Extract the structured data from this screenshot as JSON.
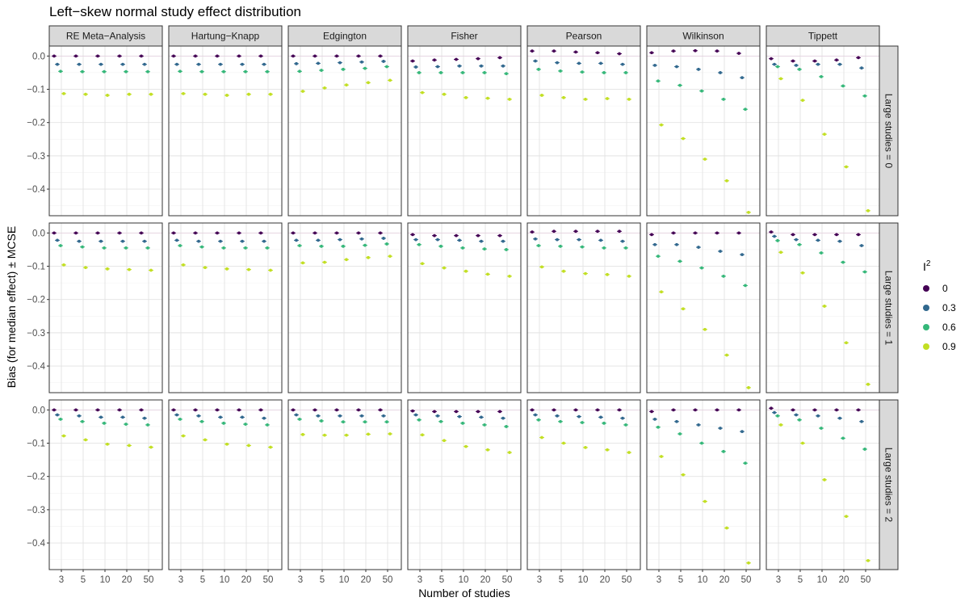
{
  "chart_data": {
    "type": "scatter",
    "title": "Left−skew normal study effect distribution",
    "xlabel": "Number of studies",
    "ylabel": "Bias (for median effect) ± MCSE",
    "x_categories": [
      "3",
      "5",
      "10",
      "20",
      "50"
    ],
    "y_ticks": [
      0.0,
      -0.1,
      -0.2,
      -0.3,
      -0.4
    ],
    "y_tick_labels": [
      "0.0",
      "−0.1",
      "−0.2",
      "−0.3",
      "−0.4"
    ],
    "ylim": [
      -0.48,
      0.03
    ],
    "grid": true,
    "legend": {
      "title": "I",
      "title_superscript": "2",
      "placement": "right",
      "entries": [
        {
          "label": "0",
          "color": "#440154"
        },
        {
          "label": "0.3",
          "color": "#31688E"
        },
        {
          "label": "0.6",
          "color": "#35B779"
        },
        {
          "label": "0.9",
          "color": "#C2DF23"
        }
      ]
    },
    "methods": [
      "RE Meta−Analysis",
      "Hartung−Knapp",
      "Edgington",
      "Fisher",
      "Pearson",
      "Wilkinson",
      "Tippett"
    ],
    "rows": [
      "Large studies = 0",
      "Large studies = 1",
      "Large studies = 2"
    ],
    "series_order": [
      "0",
      "0.3",
      "0.6",
      "0.9"
    ],
    "values": [
      [
        [
          [
            0.0,
            -0.025,
            -0.046,
            -0.113
          ],
          [
            0.0,
            -0.025,
            -0.047,
            -0.115
          ],
          [
            0.0,
            -0.025,
            -0.047,
            -0.118
          ],
          [
            0.0,
            -0.025,
            -0.047,
            -0.115
          ],
          [
            0.0,
            -0.025,
            -0.047,
            -0.115
          ]
        ],
        [
          [
            0.0,
            -0.025,
            -0.046,
            -0.113
          ],
          [
            0.0,
            -0.025,
            -0.047,
            -0.115
          ],
          [
            0.0,
            -0.025,
            -0.047,
            -0.118
          ],
          [
            0.0,
            -0.025,
            -0.047,
            -0.115
          ],
          [
            0.0,
            -0.025,
            -0.047,
            -0.115
          ]
        ],
        [
          [
            0.0,
            -0.023,
            -0.046,
            -0.106
          ],
          [
            0.0,
            -0.022,
            -0.043,
            -0.096
          ],
          [
            0.0,
            -0.02,
            -0.04,
            -0.087
          ],
          [
            0.0,
            -0.018,
            -0.037,
            -0.08
          ],
          [
            0.0,
            -0.016,
            -0.032,
            -0.073
          ]
        ],
        [
          [
            -0.015,
            -0.033,
            -0.05,
            -0.11
          ],
          [
            -0.012,
            -0.032,
            -0.05,
            -0.115
          ],
          [
            -0.01,
            -0.03,
            -0.05,
            -0.125
          ],
          [
            -0.008,
            -0.03,
            -0.05,
            -0.127
          ],
          [
            -0.005,
            -0.03,
            -0.053,
            -0.13
          ]
        ],
        [
          [
            0.015,
            -0.015,
            -0.04,
            -0.118
          ],
          [
            0.015,
            -0.02,
            -0.045,
            -0.125
          ],
          [
            0.012,
            -0.022,
            -0.048,
            -0.13
          ],
          [
            0.01,
            -0.022,
            -0.05,
            -0.128
          ],
          [
            0.007,
            -0.025,
            -0.05,
            -0.13
          ]
        ],
        [
          [
            0.01,
            -0.028,
            -0.075,
            -0.207
          ],
          [
            0.015,
            -0.032,
            -0.088,
            -0.248
          ],
          [
            0.016,
            -0.04,
            -0.105,
            -0.31
          ],
          [
            0.015,
            -0.05,
            -0.13,
            -0.375
          ],
          [
            0.008,
            -0.065,
            -0.16,
            -0.47
          ]
        ],
        [
          [
            -0.008,
            -0.025,
            -0.032,
            -0.068
          ],
          [
            -0.015,
            -0.028,
            -0.04,
            -0.133
          ],
          [
            -0.015,
            -0.025,
            -0.062,
            -0.235
          ],
          [
            -0.012,
            -0.025,
            -0.09,
            -0.333
          ],
          [
            -0.005,
            -0.036,
            -0.12,
            -0.465
          ]
        ]
      ],
      [
        [
          [
            0.0,
            -0.022,
            -0.038,
            -0.096
          ],
          [
            0.0,
            -0.025,
            -0.042,
            -0.104
          ],
          [
            0.0,
            -0.025,
            -0.045,
            -0.108
          ],
          [
            0.0,
            -0.025,
            -0.045,
            -0.11
          ],
          [
            0.0,
            -0.025,
            -0.045,
            -0.112
          ]
        ],
        [
          [
            0.0,
            -0.022,
            -0.038,
            -0.096
          ],
          [
            0.0,
            -0.025,
            -0.042,
            -0.104
          ],
          [
            0.0,
            -0.025,
            -0.045,
            -0.108
          ],
          [
            0.0,
            -0.025,
            -0.045,
            -0.11
          ],
          [
            0.0,
            -0.025,
            -0.045,
            -0.112
          ]
        ],
        [
          [
            0.0,
            -0.022,
            -0.038,
            -0.09
          ],
          [
            0.0,
            -0.022,
            -0.04,
            -0.088
          ],
          [
            0.0,
            -0.02,
            -0.04,
            -0.08
          ],
          [
            0.0,
            -0.018,
            -0.037,
            -0.074
          ],
          [
            0.0,
            -0.016,
            -0.033,
            -0.07
          ]
        ],
        [
          [
            -0.005,
            -0.02,
            -0.035,
            -0.092
          ],
          [
            -0.008,
            -0.02,
            -0.04,
            -0.105
          ],
          [
            -0.008,
            -0.022,
            -0.045,
            -0.115
          ],
          [
            -0.008,
            -0.025,
            -0.048,
            -0.124
          ],
          [
            -0.008,
            -0.025,
            -0.05,
            -0.13
          ]
        ],
        [
          [
            0.003,
            -0.018,
            -0.038,
            -0.102
          ],
          [
            0.005,
            -0.02,
            -0.04,
            -0.115
          ],
          [
            0.005,
            -0.02,
            -0.042,
            -0.122
          ],
          [
            0.005,
            -0.022,
            -0.045,
            -0.125
          ],
          [
            0.005,
            -0.025,
            -0.045,
            -0.13
          ]
        ],
        [
          [
            -0.005,
            -0.035,
            -0.07,
            -0.177
          ],
          [
            0.0,
            -0.035,
            -0.085,
            -0.228
          ],
          [
            0.0,
            -0.043,
            -0.105,
            -0.29
          ],
          [
            0.0,
            -0.055,
            -0.13,
            -0.367
          ],
          [
            0.0,
            -0.065,
            -0.158,
            -0.465
          ]
        ],
        [
          [
            0.003,
            -0.01,
            -0.023,
            -0.058
          ],
          [
            -0.005,
            -0.02,
            -0.035,
            -0.12
          ],
          [
            -0.005,
            -0.022,
            -0.06,
            -0.22
          ],
          [
            -0.005,
            -0.025,
            -0.088,
            -0.33
          ],
          [
            -0.005,
            -0.038,
            -0.117,
            -0.455
          ]
        ]
      ],
      [
        [
          [
            0.0,
            -0.015,
            -0.028,
            -0.078
          ],
          [
            0.0,
            -0.018,
            -0.035,
            -0.09
          ],
          [
            0.0,
            -0.022,
            -0.04,
            -0.103
          ],
          [
            0.0,
            -0.022,
            -0.043,
            -0.107
          ],
          [
            0.0,
            -0.025,
            -0.045,
            -0.112
          ]
        ],
        [
          [
            0.0,
            -0.015,
            -0.028,
            -0.078
          ],
          [
            0.0,
            -0.018,
            -0.035,
            -0.09
          ],
          [
            0.0,
            -0.022,
            -0.04,
            -0.103
          ],
          [
            0.0,
            -0.022,
            -0.043,
            -0.107
          ],
          [
            0.0,
            -0.025,
            -0.045,
            -0.112
          ]
        ],
        [
          [
            0.0,
            -0.015,
            -0.028,
            -0.074
          ],
          [
            0.0,
            -0.018,
            -0.033,
            -0.076
          ],
          [
            0.0,
            -0.018,
            -0.036,
            -0.076
          ],
          [
            0.0,
            -0.018,
            -0.036,
            -0.073
          ],
          [
            0.0,
            -0.018,
            -0.036,
            -0.072
          ]
        ],
        [
          [
            -0.003,
            -0.015,
            -0.03,
            -0.075
          ],
          [
            -0.005,
            -0.018,
            -0.035,
            -0.092
          ],
          [
            -0.005,
            -0.02,
            -0.04,
            -0.11
          ],
          [
            -0.005,
            -0.022,
            -0.045,
            -0.12
          ],
          [
            -0.005,
            -0.025,
            -0.05,
            -0.128
          ]
        ],
        [
          [
            0.0,
            -0.015,
            -0.03,
            -0.083
          ],
          [
            0.0,
            -0.018,
            -0.035,
            -0.1
          ],
          [
            0.0,
            -0.02,
            -0.038,
            -0.113
          ],
          [
            0.0,
            -0.022,
            -0.04,
            -0.12
          ],
          [
            0.0,
            -0.025,
            -0.045,
            -0.128
          ]
        ],
        [
          [
            -0.005,
            -0.028,
            -0.052,
            -0.14
          ],
          [
            0.0,
            -0.035,
            -0.072,
            -0.195
          ],
          [
            0.0,
            -0.045,
            -0.1,
            -0.275
          ],
          [
            0.0,
            -0.055,
            -0.125,
            -0.355
          ],
          [
            0.0,
            -0.065,
            -0.16,
            -0.46
          ]
        ],
        [
          [
            0.005,
            -0.008,
            -0.018,
            -0.045
          ],
          [
            0.0,
            -0.015,
            -0.03,
            -0.1
          ],
          [
            0.0,
            -0.018,
            -0.055,
            -0.21
          ],
          [
            0.0,
            -0.025,
            -0.085,
            -0.32
          ],
          [
            0.0,
            -0.035,
            -0.118,
            -0.453
          ]
        ]
      ]
    ]
  }
}
